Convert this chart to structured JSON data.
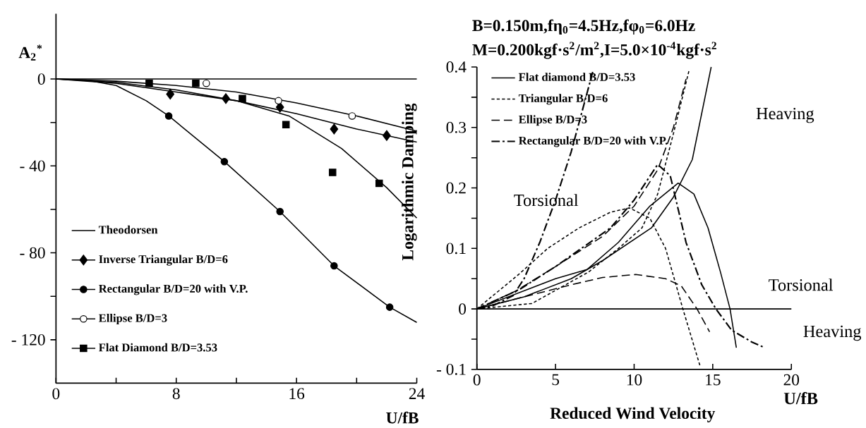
{
  "chart_data": [
    {
      "type": "scatter",
      "xlabel": "U/fB",
      "ylabel": "A$_{2}$$^{*}$",
      "xlim": [
        0,
        24
      ],
      "ylim": [
        -140,
        30
      ],
      "xticks": [
        0,
        {
          "value": 4,
          "label": null
        },
        8,
        {
          "value": 12,
          "label": null
        },
        16,
        {
          "value": 20,
          "label": null
        },
        24
      ],
      "yticks": [
        {
          "value": -120,
          "label": "- 120"
        },
        {
          "value": -100,
          "label": null
        },
        {
          "value": -80,
          "label": "- 80"
        },
        {
          "value": -60,
          "label": null
        },
        {
          "value": -40,
          "label": "- 40"
        },
        {
          "value": -20,
          "label": null
        },
        0
      ],
      "legend": "bottom left",
      "series": [
        {
          "name": "Theodorsen",
          "type": "line",
          "color": "#000000",
          "marker": "none",
          "x": [
            0,
            24
          ],
          "values": [
            0,
            0
          ]
        },
        {
          "name": "Inverse Triangular B/D=6",
          "type": "scatter",
          "color": "#000000",
          "marker": "diamond",
          "x": [
            7.6,
            11.3,
            14.9,
            18.5,
            22.0
          ],
          "values": [
            -7,
            -9,
            -13,
            -23,
            -26
          ]
        },
        {
          "name": "Rectangular B/D=20 with V.P.",
          "type": "scatter",
          "color": "#000000",
          "marker": "circle",
          "x": [
            7.5,
            11.2,
            14.9,
            18.5,
            22.2
          ],
          "values": [
            -17,
            -38,
            -61,
            -86,
            -105
          ]
        },
        {
          "name": "Ellipse B/D=3",
          "type": "scatter",
          "color": "#ffffff",
          "marker": "circle",
          "x": [
            10.0,
            14.8,
            19.7
          ],
          "values": [
            -2,
            -10,
            -17
          ]
        },
        {
          "name": "Flat Diamond B/D=3.53",
          "type": "scatter",
          "color": "#000000",
          "marker": "square",
          "x": [
            6.2,
            9.3,
            12.4,
            15.3,
            18.4,
            21.5
          ],
          "values": [
            -2,
            -2,
            -9,
            -21,
            -43,
            -48
          ]
        },
        {
          "type": "line",
          "color": "#000000",
          "marker": "none",
          "x": [
            0,
            4,
            8,
            12,
            16,
            20,
            24
          ],
          "values": [
            0,
            -2,
            -6,
            -10,
            -16,
            -23,
            -29
          ]
        },
        {
          "type": "line",
          "color": "#000000",
          "marker": "none",
          "x": [
            0,
            2,
            4,
            6,
            7.5,
            11.2,
            14.9,
            18.5,
            22.2,
            24
          ],
          "values": [
            0,
            -0.5,
            -3,
            -10,
            -17,
            -38,
            -61,
            -86,
            -105,
            -112
          ]
        },
        {
          "type": "line",
          "color": "#000000",
          "marker": "none",
          "x": [
            0,
            4,
            8,
            12,
            16,
            20,
            24
          ],
          "values": [
            0,
            -1,
            -3,
            -6,
            -11,
            -17,
            -24
          ]
        },
        {
          "type": "line",
          "color": "#000000",
          "marker": "none",
          "x": [
            0,
            4,
            8,
            12,
            15.5,
            19,
            22,
            24
          ],
          "values": [
            0,
            -1.5,
            -5,
            -10,
            -17,
            -32,
            -50,
            -64
          ]
        }
      ]
    },
    {
      "type": "line",
      "title": "B=0.150m,fη$_{0}$=4.5Hz,fφ$_{0}$=6.0Hz",
      "subtitle": "M=0.200kgf·s$^{2}$/m$^{2}$,I=5.0×10$^{-4}$kgf·s$^{2}$",
      "xlabel": "Reduced Wind Velocity",
      "ylabel": "Logarithmic Damping",
      "xlim": [
        0,
        20
      ],
      "ylim": [
        -0.1,
        0.4
      ],
      "xticks": [
        0,
        5,
        10,
        15,
        20
      ],
      "yticks": [
        {
          "value": -0.1,
          "label": "- 0.1"
        },
        {
          "value": -0.05,
          "label": null
        },
        0,
        {
          "value": 0.05,
          "label": null
        },
        0.1,
        {
          "value": 0.15,
          "label": null
        },
        0.2,
        {
          "value": 0.25,
          "label": null
        },
        0.3,
        {
          "value": 0.35,
          "label": null
        },
        0.4
      ],
      "legend": "top left",
      "ref_lines": [
        {
          "axis": "y",
          "value": 0
        }
      ],
      "annotations": [
        "U/fB",
        "Torsional",
        "Heaving",
        "Torsional",
        "Heaving"
      ],
      "series": [
        {
          "name": "Flat diamond B/D=3.53",
          "color": "#000000",
          "line_style": "solid",
          "x": [
            0,
            2.5,
            5,
            7,
            9,
            11,
            12.8,
            13.8,
            14.7,
            15.5,
            16.1,
            16.5
          ],
          "values": [
            0,
            0.025,
            0.05,
            0.065,
            0.11,
            0.17,
            0.208,
            0.19,
            0.134,
            0.06,
            0,
            -0.064
          ]
        },
        {
          "name": "Triangular B/D=6",
          "color": "#000000",
          "line_style": "dotted",
          "x": [
            0,
            2.7,
            4.5,
            6.5,
            8.5,
            9.7,
            11,
            12,
            13.1,
            14.2
          ],
          "values": [
            0,
            0.058,
            0.1,
            0.134,
            0.16,
            0.167,
            0.15,
            0.1,
            0,
            -0.095
          ]
        },
        {
          "name": "Ellipse B/D=3",
          "color": "#000000",
          "line_style": "dashed",
          "x": [
            0,
            3,
            6,
            8,
            10.1,
            12,
            13,
            14,
            14.8
          ],
          "values": [
            0,
            0.02,
            0.04,
            0.052,
            0.057,
            0.05,
            0.038,
            0,
            -0.038
          ]
        },
        {
          "name": "Rectangular B/D=20 with V.P.",
          "color": "#000000",
          "line_style": "dashdotted",
          "x": [
            0,
            2.7,
            5,
            8.5,
            10,
            11.5,
            12.3,
            13.3,
            14.3,
            15.2,
            16.2,
            17.5,
            18.3
          ],
          "values": [
            0,
            0.032,
            0.07,
            0.134,
            0.18,
            0.239,
            0.22,
            0.11,
            0.04,
            0,
            -0.035,
            -0.055,
            -0.064
          ]
        },
        {
          "color": "#000000",
          "line_style": "solid",
          "x": [
            0,
            3,
            6,
            8,
            11.1,
            12.5,
            13.7,
            14.9
          ],
          "values": [
            0,
            0.02,
            0.05,
            0.08,
            0.134,
            0.185,
            0.247,
            0.4
          ]
        },
        {
          "color": "#000000",
          "line_style": "dotted",
          "x": [
            0,
            3.5,
            7.1,
            9,
            10.5,
            11.5,
            12.5,
            13.5
          ],
          "values": [
            0,
            0.009,
            0.061,
            0.1,
            0.134,
            0.19,
            0.29,
            0.395
          ]
        },
        {
          "color": "#000000",
          "line_style": "dashed",
          "x": [
            0,
            2.5,
            5,
            8,
            10,
            11.5,
            12.5,
            13.3
          ],
          "values": [
            0,
            0.03,
            0.07,
            0.12,
            0.17,
            0.23,
            0.3,
            0.38
          ]
        },
        {
          "color": "#000000",
          "line_style": "dashdotted",
          "x": [
            0,
            1,
            2.3,
            3,
            4,
            5,
            6,
            7.4
          ],
          "values": [
            0,
            0.005,
            0.022,
            0.05,
            0.11,
            0.18,
            0.26,
            0.395
          ]
        }
      ]
    }
  ]
}
